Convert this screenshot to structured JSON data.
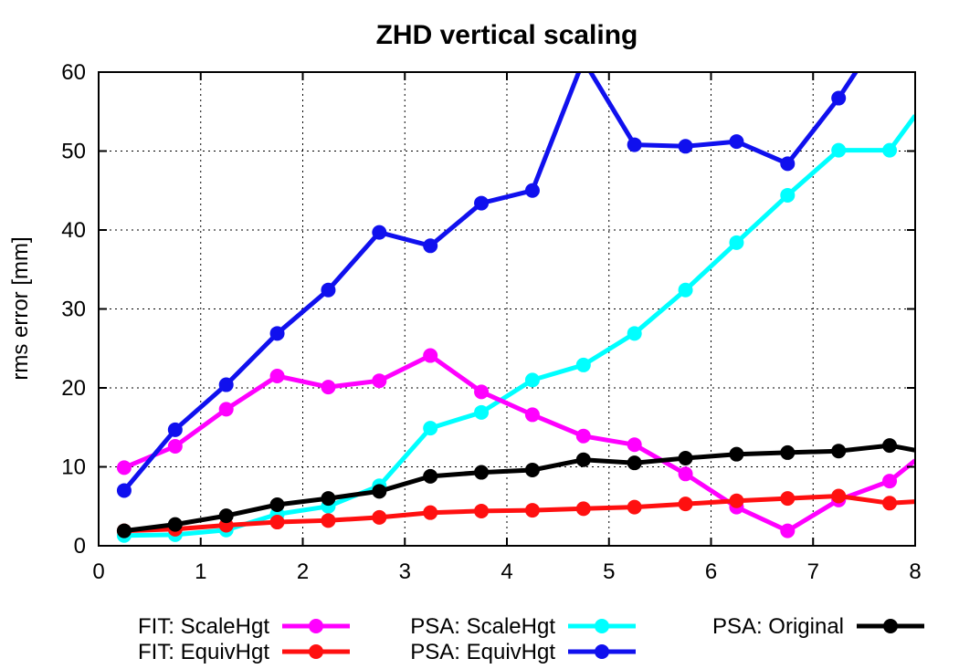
{
  "chart_data": {
    "type": "line",
    "title": "ZHD vertical scaling",
    "xlabel": "",
    "ylabel": "rms error [mm]",
    "xlim": [
      0,
      8
    ],
    "ylim": [
      0,
      60
    ],
    "xticks": [
      "0",
      "1",
      "2",
      "3",
      "4",
      "5",
      "6",
      "7",
      "8"
    ],
    "yticks": [
      "0",
      "10",
      "20",
      "30",
      "40",
      "50",
      "60"
    ],
    "grid": true,
    "legend_position": "bottom",
    "x": [
      0.25,
      0.75,
      1.25,
      1.75,
      2.25,
      2.75,
      3.25,
      3.75,
      4.25,
      4.75,
      5.25,
      5.75,
      6.25,
      6.75,
      7.25,
      7.75
    ],
    "series": [
      {
        "name": "FIT: ScaleHgt",
        "color": "#ff00ff",
        "values": [
          9.9,
          12.6,
          17.3,
          21.5,
          20.1,
          20.9,
          24.1,
          19.5,
          16.6,
          13.9,
          12.8,
          9.1,
          4.9,
          1.9,
          5.8,
          8.2
        ],
        "x_end": 8.0,
        "y_end": 10.8
      },
      {
        "name": "FIT: EquivHgt",
        "color": "#ff1010",
        "values": [
          1.9,
          2.1,
          2.6,
          3.0,
          3.2,
          3.6,
          4.2,
          4.4,
          4.5,
          4.7,
          4.9,
          5.3,
          5.7,
          6.0,
          6.3,
          5.4
        ],
        "x_end": 8.0,
        "y_end": 5.6
      },
      {
        "name": "PSA: ScaleHgt",
        "color": "#00ffff",
        "values": [
          1.3,
          1.4,
          2.0,
          4.0,
          5.0,
          7.6,
          14.9,
          16.9,
          21.0,
          22.9,
          26.9,
          32.4,
          38.4,
          44.4,
          50.1,
          50.1
        ],
        "x_end": 8.0,
        "y_end": 54.5
      },
      {
        "name": "PSA: EquivHgt",
        "color": "#1010ee",
        "values": [
          7.0,
          14.7,
          20.4,
          26.9,
          32.4,
          39.7,
          38.0,
          43.4,
          45.0,
          61.5,
          50.8,
          50.6,
          51.2,
          48.4,
          56.7,
          66.5
        ],
        "x_end": null,
        "y_end": null
      },
      {
        "name": "PSA: Original",
        "color": "#000000",
        "values": [
          1.9,
          2.7,
          3.8,
          5.2,
          6.0,
          6.9,
          8.8,
          9.3,
          9.6,
          10.9,
          10.5,
          11.1,
          11.6,
          11.8,
          12.0,
          12.7
        ],
        "x_end": 8.0,
        "y_end": 12.1
      }
    ]
  }
}
